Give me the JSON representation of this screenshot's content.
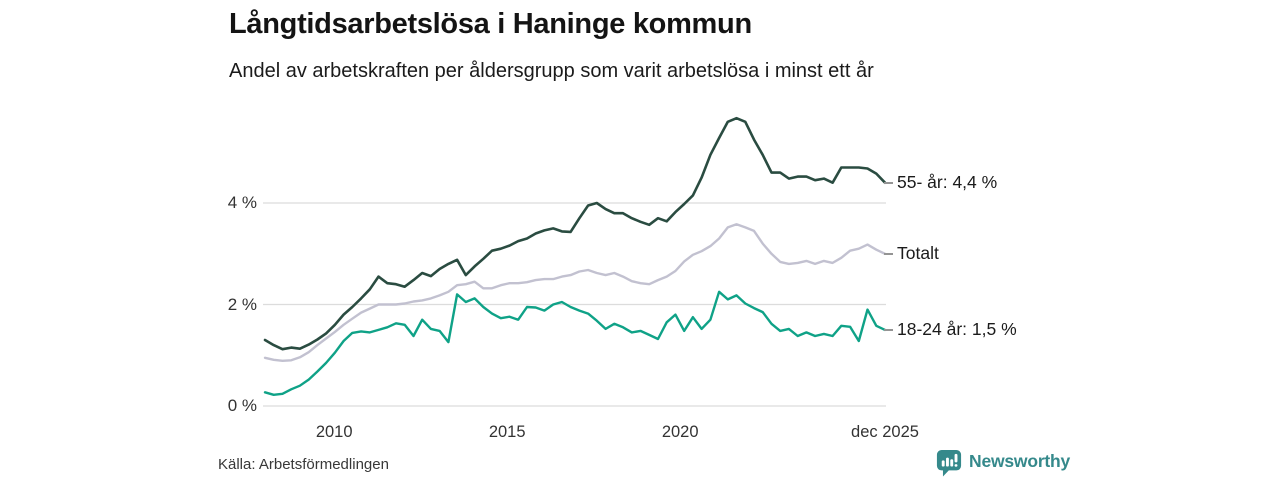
{
  "page": {
    "source": "Källa: Arbetsförmedlingen",
    "brand": {
      "name": "Newsworthy",
      "color": "#35898b",
      "icon": "bar-chart-speech-bubble-icon"
    }
  },
  "chart_data": {
    "type": "line",
    "title": "Långtidsarbetslösa i Haninge kommun",
    "subtitle": "Andel av arbetskraften per åldersgrupp som varit arbetslösa i minst ett år",
    "x_start": 2008,
    "x_end": 2025.92,
    "ylim": [
      0,
      6
    ],
    "grid": "horizontal-only",
    "legend_position": "right-end-labels",
    "colors": {
      "grid": "#dcdcdc",
      "axis_text": "#333333",
      "end_dash": "#949494"
    },
    "y_ticks": [
      {
        "v": 0,
        "label": "0 %"
      },
      {
        "v": 2,
        "label": "2 %"
      },
      {
        "v": 4,
        "label": "4 %"
      }
    ],
    "x_ticks": [
      {
        "v": 2010,
        "label": "2010"
      },
      {
        "v": 2015,
        "label": "2015"
      },
      {
        "v": 2020,
        "label": "2020"
      },
      {
        "v": 2025.92,
        "label": "dec 2025"
      }
    ],
    "series": [
      {
        "name": "Totalt",
        "slug": "totalt",
        "color": "#c2c1d0",
        "stroke_width": 2.4,
        "end_label": "Totalt",
        "end_value": 3.0,
        "values": [
          0.95,
          0.91,
          0.89,
          0.9,
          0.96,
          1.06,
          1.2,
          1.33,
          1.46,
          1.6,
          1.72,
          1.84,
          1.92,
          2.0,
          2.0,
          2.0,
          2.02,
          2.06,
          2.08,
          2.12,
          2.18,
          2.25,
          2.38,
          2.4,
          2.45,
          2.32,
          2.32,
          2.38,
          2.42,
          2.42,
          2.44,
          2.48,
          2.5,
          2.5,
          2.55,
          2.58,
          2.65,
          2.68,
          2.62,
          2.58,
          2.62,
          2.55,
          2.46,
          2.42,
          2.4,
          2.48,
          2.55,
          2.66,
          2.85,
          2.98,
          3.05,
          3.15,
          3.3,
          3.52,
          3.58,
          3.52,
          3.45,
          3.2,
          3.0,
          2.84,
          2.8,
          2.82,
          2.86,
          2.8,
          2.86,
          2.82,
          2.92,
          3.06,
          3.1,
          3.18,
          3.08,
          3.0
        ]
      },
      {
        "name": "55- år",
        "slug": "55-ar",
        "color": "#2a4c41",
        "stroke_width": 2.6,
        "end_label": "55- år: 4,4 %",
        "end_value": 4.4,
        "values": [
          1.3,
          1.2,
          1.12,
          1.15,
          1.13,
          1.21,
          1.31,
          1.43,
          1.6,
          1.8,
          1.95,
          2.12,
          2.3,
          2.55,
          2.42,
          2.4,
          2.35,
          2.48,
          2.62,
          2.56,
          2.7,
          2.8,
          2.88,
          2.58,
          2.75,
          2.9,
          3.06,
          3.1,
          3.16,
          3.25,
          3.3,
          3.4,
          3.46,
          3.5,
          3.44,
          3.43,
          3.7,
          3.95,
          4.0,
          3.88,
          3.8,
          3.8,
          3.7,
          3.63,
          3.57,
          3.7,
          3.64,
          3.82,
          3.98,
          4.15,
          4.5,
          4.95,
          5.28,
          5.6,
          5.67,
          5.6,
          5.25,
          4.95,
          4.6,
          4.6,
          4.48,
          4.52,
          4.52,
          4.45,
          4.48,
          4.4,
          4.7,
          4.7,
          4.7,
          4.68,
          4.58,
          4.4
        ]
      },
      {
        "name": "18-24 år",
        "slug": "18-24-ar",
        "color": "#0fa287",
        "stroke_width": 2.4,
        "end_label": "18-24 år: 1,5 %",
        "end_value": 1.5,
        "values": [
          0.27,
          0.22,
          0.24,
          0.33,
          0.4,
          0.52,
          0.68,
          0.85,
          1.05,
          1.28,
          1.44,
          1.47,
          1.45,
          1.5,
          1.55,
          1.63,
          1.6,
          1.38,
          1.7,
          1.52,
          1.48,
          1.26,
          2.2,
          2.05,
          2.12,
          1.95,
          1.82,
          1.73,
          1.76,
          1.7,
          1.95,
          1.94,
          1.88,
          2.0,
          2.05,
          1.95,
          1.88,
          1.82,
          1.68,
          1.52,
          1.62,
          1.55,
          1.45,
          1.48,
          1.4,
          1.32,
          1.65,
          1.8,
          1.48,
          1.75,
          1.52,
          1.7,
          2.25,
          2.1,
          2.18,
          2.02,
          1.93,
          1.85,
          1.62,
          1.48,
          1.52,
          1.38,
          1.45,
          1.38,
          1.42,
          1.38,
          1.58,
          1.56,
          1.28,
          1.9,
          1.58,
          1.5
        ]
      }
    ]
  }
}
